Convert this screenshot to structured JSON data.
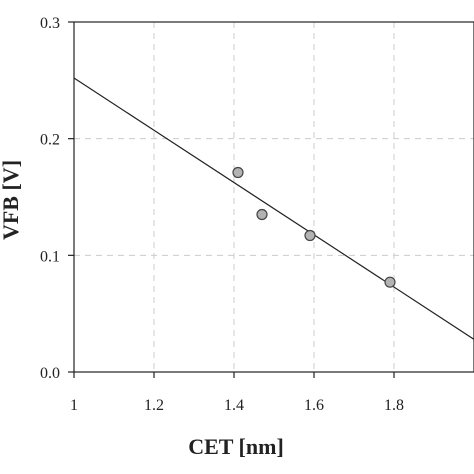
{
  "chart_data": {
    "type": "scatter",
    "xlabel": "CET [nm]",
    "ylabel": "VFB [V]",
    "xlim": [
      1.0,
      2.0
    ],
    "ylim": [
      0.0,
      0.3
    ],
    "x_ticks": [
      1,
      1.2,
      1.4,
      1.6,
      1.8
    ],
    "x_tick_labels": [
      "1",
      "1.2",
      "1.4",
      "1.6",
      "1.8"
    ],
    "y_ticks": [
      0.0,
      0.1,
      0.2,
      0.3
    ],
    "y_tick_labels": [
      "0.0",
      "0.1",
      "0.2",
      "0.3"
    ],
    "grid": true,
    "points": [
      {
        "x": 1.41,
        "y": 0.171
      },
      {
        "x": 1.47,
        "y": 0.135
      },
      {
        "x": 1.59,
        "y": 0.117
      },
      {
        "x": 1.79,
        "y": 0.077
      }
    ],
    "fit_line": {
      "x": [
        1.0,
        2.0
      ],
      "y": [
        0.252,
        0.028
      ]
    },
    "colors": {
      "marker_fill": "#b3b3b3",
      "marker_stroke": "#444444",
      "line": "#222222",
      "grid": "#cccccc"
    }
  }
}
